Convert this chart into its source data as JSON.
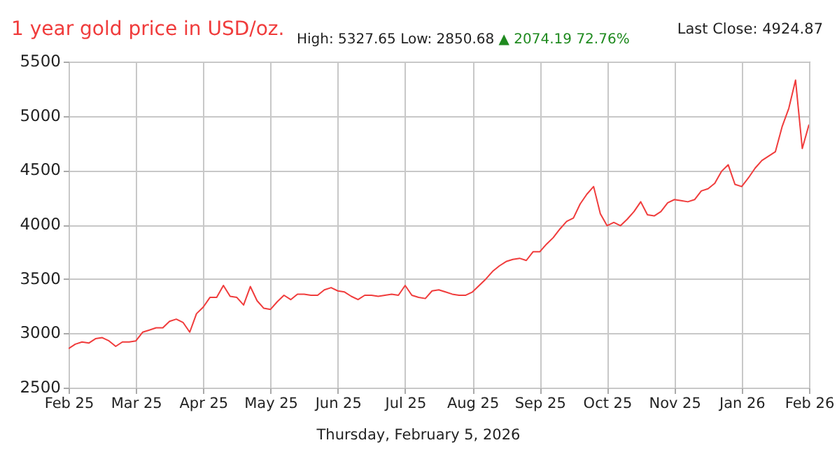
{
  "chart_data": {
    "type": "line",
    "title": "1 year gold price in USD/oz.",
    "subtitle": "High: 5327.65 Low: 2850.68",
    "annotations": [
      "▲ 2074.19 72.76%",
      "Last Close: 4924.87",
      "Thursday, February 5, 2026"
    ],
    "categories": [
      "Feb 25",
      null,
      null,
      null,
      null,
      null,
      null,
      null,
      null,
      null,
      "Mar 25",
      null,
      null,
      null,
      null,
      null,
      null,
      null,
      null,
      null,
      "Apr 25",
      null,
      null,
      null,
      null,
      null,
      null,
      null,
      null,
      null,
      "May 25",
      null,
      null,
      null,
      null,
      null,
      null,
      null,
      null,
      null,
      "Jun 25",
      null,
      null,
      null,
      null,
      null,
      null,
      null,
      null,
      null,
      "Jul 25",
      null,
      null,
      null,
      null,
      null,
      null,
      null,
      null,
      null,
      "Aug 25",
      null,
      null,
      null,
      null,
      null,
      null,
      null,
      null,
      null,
      "Sep 25",
      null,
      null,
      null,
      null,
      null,
      null,
      null,
      null,
      null,
      "Oct 25",
      null,
      null,
      null,
      null,
      null,
      null,
      null,
      null,
      null,
      "Nov 25",
      null,
      null,
      null,
      null,
      null,
      null,
      null,
      null,
      null,
      "Jan 26",
      null,
      null,
      null,
      null,
      null,
      null,
      null,
      null,
      null,
      "Feb 26"
    ],
    "series": [
      {
        "color": "#f03c3c",
        "values": [
          2860,
          2900,
          2920,
          2910,
          2950,
          2960,
          2930,
          2880,
          2920,
          2920,
          2930,
          3010,
          3030,
          3050,
          3050,
          3110,
          3130,
          3100,
          3010,
          3180,
          3240,
          3330,
          3330,
          3440,
          3340,
          3330,
          3260,
          3430,
          3300,
          3230,
          3220,
          3290,
          3350,
          3310,
          3360,
          3360,
          3350,
          3350,
          3400,
          3420,
          3390,
          3380,
          3340,
          3310,
          3350,
          3350,
          3340,
          3350,
          3360,
          3350,
          3440,
          3350,
          3330,
          3320,
          3390,
          3400,
          3380,
          3360,
          3350,
          3350,
          3380,
          3440,
          3500,
          3570,
          3620,
          3660,
          3680,
          3690,
          3670,
          3750,
          3750,
          3820,
          3880,
          3960,
          4030,
          4060,
          4190,
          4280,
          4350,
          4100,
          3990,
          4020,
          3990,
          4050,
          4120,
          4210,
          4090,
          4080,
          4120,
          4200,
          4230,
          4220,
          4210,
          4230,
          4310,
          4330,
          4380,
          4490,
          4550,
          4370,
          4350,
          4430,
          4520,
          4590,
          4630,
          4670,
          4900,
          5070,
          5330,
          4700,
          4920
        ]
      }
    ],
    "ylim": [
      2500,
      5500
    ],
    "yticks": [
      2500,
      3000,
      3500,
      4000,
      4500,
      5000,
      5500
    ],
    "grid": true,
    "marker": "none",
    "line_style": "solid"
  }
}
